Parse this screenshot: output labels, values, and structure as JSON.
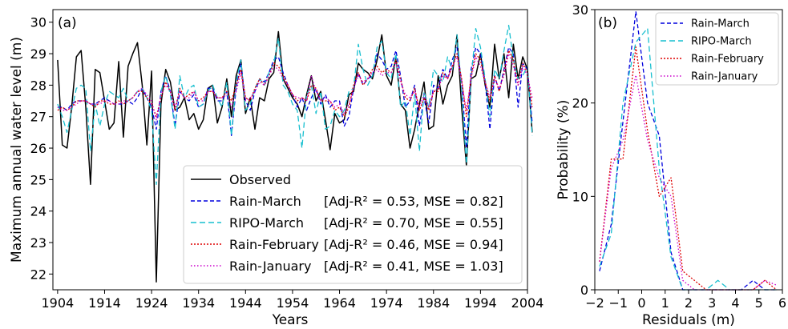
{
  "chart_data": [
    {
      "panel": "(a)",
      "type": "line",
      "xlabel": "Years",
      "ylabel": "Maximum annual water level (m)",
      "xlim": [
        1903,
        2004
      ],
      "ylim": [
        21.5,
        30.4
      ],
      "xticks": [
        "1904",
        "1914",
        "1924",
        "1934",
        "1944",
        "1954",
        "1964",
        "1974",
        "1984",
        "1994",
        "2004"
      ],
      "yticks": [
        "22",
        "23",
        "24",
        "25",
        "26",
        "27",
        "28",
        "29",
        "30"
      ],
      "legend_position": "bottom-right",
      "x_start": 1904,
      "series": [
        {
          "name": "Observed",
          "label_suffix": "",
          "color": "#000000",
          "dash": "solid",
          "values": [
            28.8,
            26.1,
            26.0,
            27.3,
            28.9,
            29.1,
            27.3,
            24.85,
            28.5,
            28.4,
            27.5,
            26.6,
            26.8,
            28.75,
            26.35,
            28.6,
            29.0,
            29.35,
            28.0,
            26.1,
            28.45,
            21.75,
            27.4,
            28.5,
            28.1,
            27.2,
            27.3,
            27.6,
            26.9,
            27.1,
            26.6,
            26.9,
            27.9,
            28.0,
            26.8,
            27.3,
            28.2,
            27.0,
            28.3,
            28.8,
            27.1,
            27.6,
            26.6,
            27.6,
            27.5,
            28.2,
            28.4,
            29.7,
            28.2,
            27.9,
            27.6,
            27.4,
            27.0,
            27.7,
            28.3,
            27.5,
            27.8,
            26.9,
            25.95,
            27.1,
            26.8,
            26.9,
            27.7,
            27.8,
            28.7,
            28.5,
            28.4,
            28.2,
            28.8,
            29.6,
            28.3,
            28.0,
            28.9,
            27.4,
            27.2,
            26.0,
            26.6,
            27.4,
            28.1,
            26.6,
            26.7,
            28.3,
            27.4,
            28.0,
            28.3,
            29.6,
            27.3,
            25.45,
            28.2,
            28.3,
            29.0,
            28.0,
            27.3,
            29.3,
            28.2,
            29.0,
            27.6,
            29.3,
            28.2,
            28.9,
            28.5,
            26.5
          ]
        },
        {
          "name": "Rain-March",
          "label_suffix": "[Adj-R² = 0.53, MSE = 0.82]",
          "color": "#0000dd",
          "dash": "5,3",
          "values": [
            27.3,
            27.3,
            27.2,
            27.4,
            27.5,
            27.5,
            27.5,
            27.4,
            27.4,
            27.5,
            27.6,
            27.5,
            27.4,
            27.4,
            27.4,
            27.5,
            27.4,
            27.6,
            27.9,
            27.6,
            27.3,
            26.6,
            27.8,
            28.3,
            27.8,
            26.7,
            27.8,
            27.6,
            27.5,
            27.7,
            27.3,
            27.4,
            27.9,
            27.9,
            27.5,
            27.5,
            27.8,
            26.4,
            27.9,
            28.7,
            27.5,
            27.2,
            27.8,
            28.2,
            28.1,
            28.4,
            28.8,
            28.9,
            28.4,
            28.0,
            27.7,
            27.3,
            27.6,
            27.2,
            27.6,
            27.9,
            27.4,
            27.7,
            27.3,
            27.5,
            27.5,
            26.7,
            27.0,
            27.9,
            28.4,
            28.0,
            28.2,
            28.3,
            29.0,
            28.8,
            28.5,
            28.6,
            29.1,
            28.3,
            27.3,
            27.5,
            28.0,
            26.7,
            27.6,
            26.8,
            28.0,
            27.9,
            28.5,
            28.2,
            28.8,
            29.2,
            28.1,
            26.0,
            28.5,
            29.2,
            29.0,
            28.1,
            26.6,
            28.3,
            27.8,
            28.5,
            29.2,
            29.0,
            27.3,
            28.7,
            28.5,
            26.8
          ]
        },
        {
          "name": "RIPO-March",
          "label_suffix": "[Adj-R² = 0.70, MSE = 0.55]",
          "color": "#17bfcf",
          "dash": "7,4",
          "values": [
            27.4,
            27.0,
            26.5,
            27.2,
            27.9,
            28.0,
            27.9,
            25.9,
            27.4,
            26.7,
            27.4,
            27.8,
            27.7,
            27.6,
            27.9,
            27.5,
            27.6,
            27.8,
            27.9,
            27.6,
            27.2,
            24.85,
            27.8,
            28.3,
            27.7,
            26.6,
            28.3,
            27.6,
            27.9,
            28.0,
            27.3,
            27.4,
            27.8,
            28.0,
            27.6,
            27.3,
            28.1,
            26.4,
            28.1,
            28.8,
            27.2,
            27.4,
            27.9,
            28.2,
            28.0,
            28.4,
            28.7,
            29.5,
            28.0,
            27.8,
            27.4,
            27.2,
            26.0,
            27.7,
            28.0,
            27.1,
            27.8,
            26.6,
            26.7,
            27.2,
            27.0,
            27.2,
            27.8,
            27.9,
            29.3,
            28.5,
            28.0,
            28.3,
            29.2,
            29.4,
            28.4,
            28.2,
            29.0,
            27.3,
            27.5,
            26.4,
            27.7,
            25.9,
            27.8,
            27.3,
            28.5,
            28.3,
            28.1,
            28.9,
            28.5,
            29.6,
            27.9,
            25.5,
            28.2,
            29.8,
            29.2,
            28.2,
            27.0,
            28.5,
            28.2,
            29.1,
            29.9,
            28.8,
            28.2,
            28.3,
            28.6,
            26.4
          ]
        },
        {
          "name": "Rain-February",
          "label_suffix": "[Adj-R² = 0.46, MSE = 0.94]",
          "color": "#dd0000",
          "dash": "2,2",
          "values": [
            27.2,
            27.3,
            27.2,
            27.3,
            27.5,
            27.5,
            27.5,
            27.4,
            27.3,
            27.5,
            27.5,
            27.4,
            27.4,
            27.5,
            27.4,
            27.5,
            27.6,
            27.8,
            27.8,
            27.6,
            27.4,
            27.0,
            27.6,
            28.1,
            27.8,
            27.2,
            27.9,
            27.6,
            27.7,
            27.8,
            27.5,
            27.6,
            27.8,
            27.8,
            27.6,
            27.6,
            27.8,
            27.5,
            28.0,
            28.5,
            27.6,
            27.5,
            27.9,
            28.2,
            28.0,
            28.3,
            28.7,
            28.6,
            28.3,
            28.0,
            27.7,
            27.5,
            27.6,
            27.5,
            28.0,
            27.9,
            27.5,
            27.5,
            27.5,
            27.2,
            27.3,
            27.0,
            27.3,
            28.0,
            28.4,
            28.0,
            28.2,
            28.5,
            28.6,
            28.4,
            28.5,
            28.4,
            28.8,
            28.2,
            27.6,
            27.5,
            27.9,
            27.2,
            27.6,
            27.2,
            27.8,
            27.8,
            28.4,
            28.2,
            28.6,
            29.0,
            28.2,
            27.0,
            28.3,
            29.0,
            28.8,
            28.1,
            27.5,
            28.3,
            27.8,
            28.4,
            29.1,
            28.8,
            28.0,
            28.7,
            28.4,
            27.3
          ]
        },
        {
          "name": "Rain-January",
          "label_suffix": "[Adj-R² = 0.41, MSE = 1.03]",
          "color": "#cc00cc",
          "dash": "1.5,2.5",
          "values": [
            27.3,
            27.2,
            27.2,
            27.3,
            27.4,
            27.5,
            27.5,
            27.4,
            27.4,
            27.4,
            27.5,
            27.5,
            27.4,
            27.4,
            27.5,
            27.5,
            27.6,
            27.8,
            27.9,
            27.7,
            27.5,
            26.9,
            27.7,
            28.0,
            27.8,
            27.3,
            27.8,
            27.6,
            27.6,
            27.8,
            27.5,
            27.5,
            27.8,
            27.8,
            27.6,
            27.6,
            27.7,
            27.3,
            27.8,
            28.4,
            27.5,
            27.6,
            27.8,
            28.1,
            28.0,
            28.3,
            28.6,
            28.5,
            28.2,
            28.0,
            27.7,
            27.6,
            27.6,
            27.5,
            28.3,
            27.8,
            27.5,
            27.6,
            27.5,
            27.3,
            27.4,
            27.1,
            27.4,
            27.9,
            28.3,
            28.1,
            28.2,
            28.4,
            28.5,
            28.3,
            28.4,
            28.4,
            28.7,
            28.1,
            27.7,
            27.6,
            27.8,
            27.3,
            27.7,
            27.3,
            27.8,
            27.9,
            28.3,
            28.2,
            28.6,
            28.9,
            28.1,
            27.2,
            28.2,
            28.9,
            28.6,
            28.1,
            27.6,
            28.2,
            27.9,
            28.3,
            29.0,
            28.6,
            28.0,
            28.6,
            28.3,
            27.6
          ]
        }
      ]
    },
    {
      "panel": "(b)",
      "type": "line",
      "xlabel": "Residuals (m)",
      "ylabel": "Probability (%)",
      "xlim": [
        -2,
        6
      ],
      "ylim": [
        0,
        30
      ],
      "xticks": [
        "−2",
        "−1",
        "0",
        "1",
        "2",
        "3",
        "4",
        "5",
        "6"
      ],
      "yticks": [
        "0",
        "10",
        "20",
        "30"
      ],
      "legend_position": "top-right",
      "series": [
        {
          "name": "Rain-March",
          "color": "#0000dd",
          "dash": "5,3",
          "x": [
            -1.8,
            -1.3,
            -0.8,
            -0.25,
            0.25,
            0.75,
            1.25,
            1.75,
            2.25,
            2.75,
            3.25,
            3.75,
            4.25,
            4.75,
            5.25,
            5.75
          ],
          "y": [
            2,
            7,
            18,
            29.8,
            20,
            16.5,
            4,
            0,
            0,
            0,
            0,
            0,
            0,
            1,
            0,
            0
          ]
        },
        {
          "name": "RIPO-March",
          "color": "#17bfcf",
          "dash": "7,4",
          "x": [
            -1.8,
            -1.3,
            -0.8,
            -0.25,
            0.25,
            0.75,
            1.25,
            1.75,
            2.25,
            2.75,
            3.25,
            3.75,
            4.25,
            4.75,
            5.25,
            5.75
          ],
          "y": [
            2.5,
            6,
            20,
            26.5,
            28,
            13,
            3.5,
            0,
            0,
            0,
            1,
            0,
            0,
            0,
            0,
            0
          ]
        },
        {
          "name": "Rain-February",
          "color": "#dd0000",
          "dash": "2,2",
          "x": [
            -1.8,
            -1.3,
            -0.8,
            -0.25,
            0.25,
            0.75,
            1.25,
            1.75,
            2.25,
            2.75,
            3.25,
            3.75,
            4.25,
            4.75,
            5.25,
            5.75
          ],
          "y": [
            3,
            14,
            14,
            26,
            17,
            10,
            12,
            2,
            1,
            0,
            0,
            0,
            0,
            0,
            1,
            0
          ]
        },
        {
          "name": "Rain-January",
          "color": "#cc00cc",
          "dash": "1.5,2.5",
          "x": [
            -1.8,
            -1.3,
            -0.8,
            -0.25,
            0.25,
            0.75,
            1.25,
            1.75,
            2.25,
            2.75,
            3.25,
            3.75,
            4.25,
            4.75,
            5.25,
            5.75
          ],
          "y": [
            3,
            13,
            16,
            23,
            16,
            12,
            10,
            1,
            0,
            0,
            0,
            0,
            0,
            0,
            1,
            0.5
          ]
        }
      ]
    }
  ]
}
